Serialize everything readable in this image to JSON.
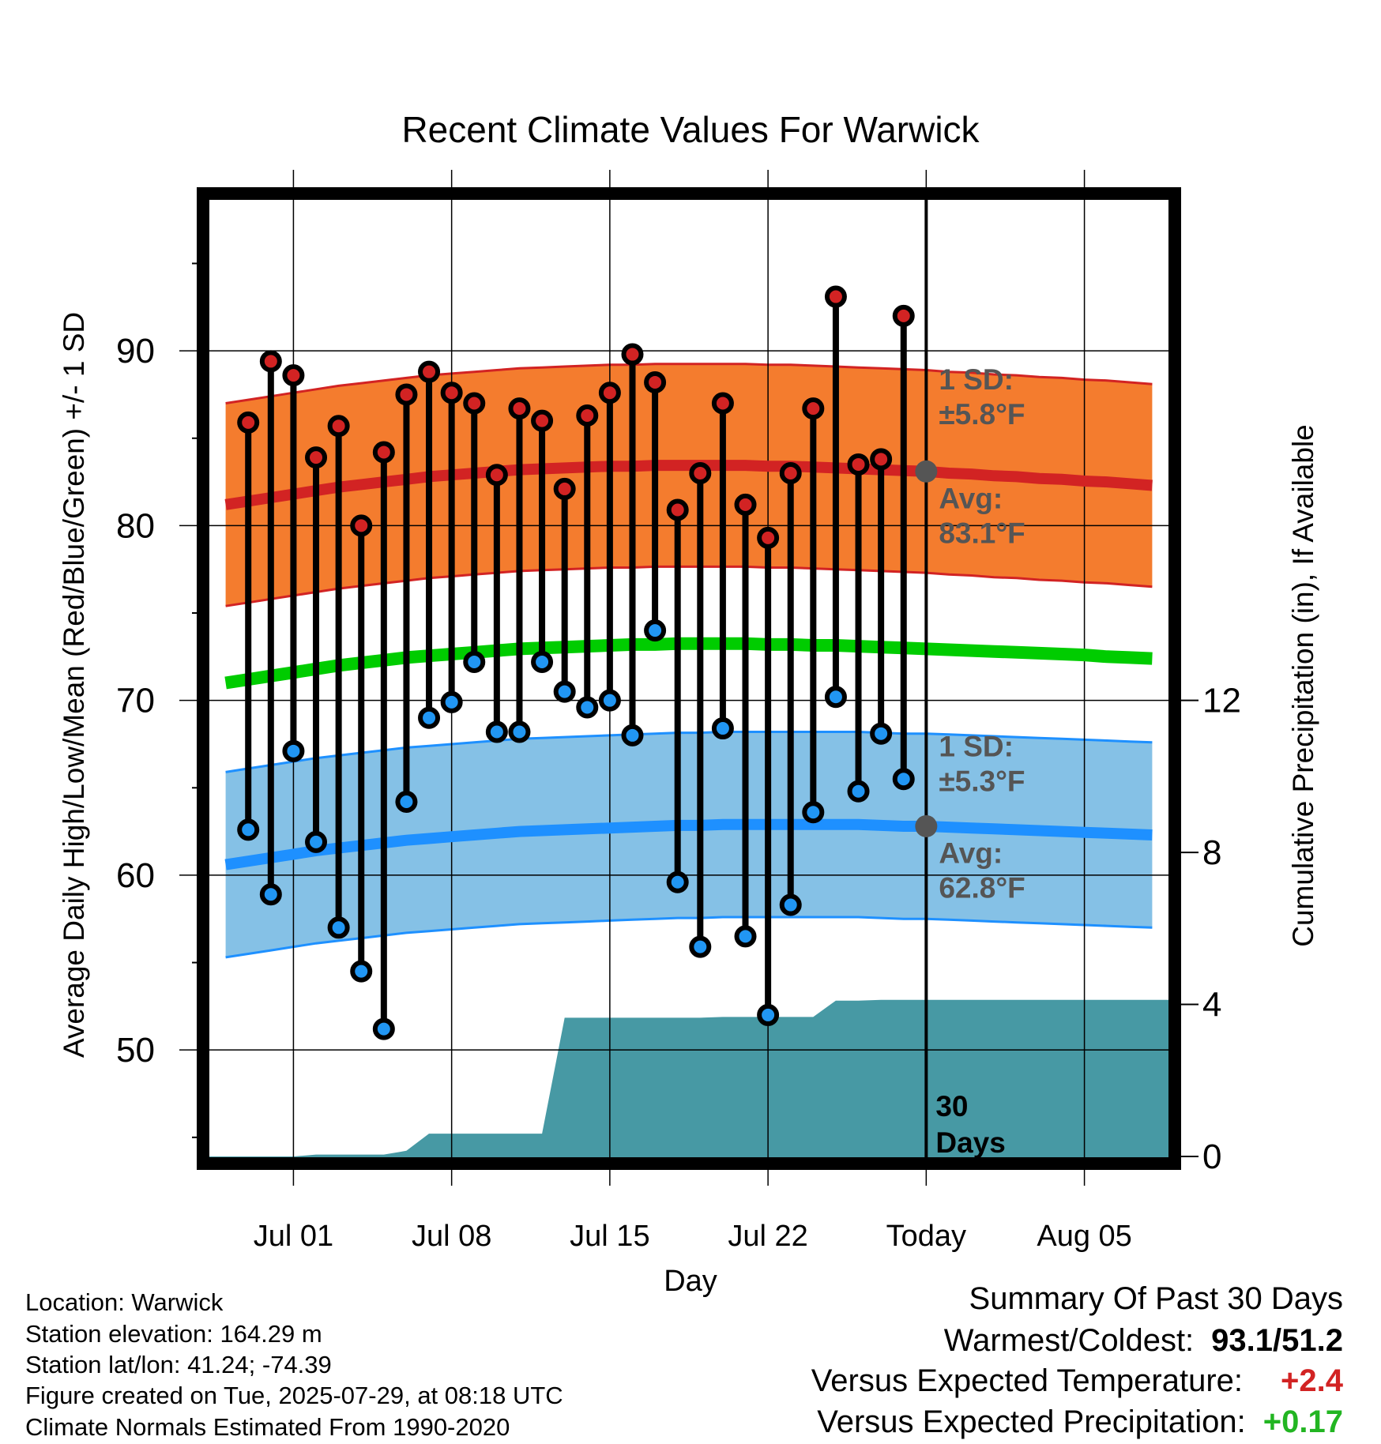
{
  "chart_data": {
    "type": "line",
    "title": "Recent Climate Values For Warwick",
    "xlabel": "Day",
    "ylabel": "Average Daily High/Low/Mean (Red/Blue/Green) +/- 1 SD",
    "y2label": "Cumulative Precipitation (in), If Available",
    "ylim": [
      43.5,
      99
    ],
    "y2lim": [
      -0.27,
      12
    ],
    "y_ticks": [
      "50",
      "60",
      "70",
      "80",
      "90"
    ],
    "y2_ticks": [
      "0",
      "4",
      "8",
      "12"
    ],
    "x_ticks": [
      "Jul 01",
      "Jul 08",
      "Jul 15",
      "Jul 22",
      "Today",
      "Aug 05"
    ],
    "x_dates": [
      "2025-06-28",
      "2025-06-29",
      "2025-06-30",
      "2025-07-01",
      "2025-07-02",
      "2025-07-03",
      "2025-07-04",
      "2025-07-05",
      "2025-07-06",
      "2025-07-07",
      "2025-07-08",
      "2025-07-09",
      "2025-07-10",
      "2025-07-11",
      "2025-07-12",
      "2025-07-13",
      "2025-07-14",
      "2025-07-15",
      "2025-07-16",
      "2025-07-17",
      "2025-07-18",
      "2025-07-19",
      "2025-07-20",
      "2025-07-21",
      "2025-07-22",
      "2025-07-23",
      "2025-07-24",
      "2025-07-25",
      "2025-07-26",
      "2025-07-27",
      "2025-07-28",
      "2025-07-29",
      "2025-07-30",
      "2025-07-31",
      "2025-08-01",
      "2025-08-02",
      "2025-08-03",
      "2025-08-04",
      "2025-08-05",
      "2025-08-06",
      "2025-08-07",
      "2025-08-08"
    ],
    "x_range": [
      "2025-06-27",
      "2025-08-09"
    ],
    "today": "2025-07-29",
    "daily_dates": [
      "2025-06-29",
      "2025-06-30",
      "2025-07-01",
      "2025-07-02",
      "2025-07-03",
      "2025-07-04",
      "2025-07-05",
      "2025-07-06",
      "2025-07-07",
      "2025-07-08",
      "2025-07-09",
      "2025-07-10",
      "2025-07-11",
      "2025-07-12",
      "2025-07-13",
      "2025-07-14",
      "2025-07-15",
      "2025-07-16",
      "2025-07-17",
      "2025-07-18",
      "2025-07-19",
      "2025-07-20",
      "2025-07-21",
      "2025-07-22",
      "2025-07-23",
      "2025-07-24",
      "2025-07-25",
      "2025-07-26",
      "2025-07-27",
      "2025-07-28"
    ],
    "daily_high": [
      85.9,
      89.4,
      88.6,
      83.9,
      85.7,
      80.0,
      84.2,
      87.5,
      88.8,
      87.6,
      87.0,
      82.9,
      86.7,
      86.0,
      82.1,
      86.3,
      87.6,
      89.8,
      88.2,
      80.9,
      83.0,
      87.0,
      81.2,
      79.3,
      83.0,
      86.7,
      93.1,
      83.5,
      83.8,
      92.0
    ],
    "daily_low": [
      62.6,
      58.9,
      67.1,
      61.9,
      57.0,
      54.5,
      51.2,
      64.2,
      69.0,
      69.9,
      72.2,
      68.2,
      68.2,
      72.2,
      70.5,
      69.6,
      70.0,
      68.0,
      74.0,
      59.6,
      55.9,
      68.4,
      56.5,
      52.0,
      58.3,
      63.6,
      70.2,
      64.8,
      68.1,
      65.5
    ],
    "normal_high": [
      81.2,
      81.4,
      81.6,
      81.8,
      82.0,
      82.2,
      82.35,
      82.5,
      82.65,
      82.8,
      82.9,
      83.0,
      83.1,
      83.2,
      83.25,
      83.3,
      83.35,
      83.4,
      83.4,
      83.45,
      83.45,
      83.45,
      83.45,
      83.45,
      83.4,
      83.4,
      83.35,
      83.3,
      83.25,
      83.2,
      83.15,
      83.1,
      83.0,
      82.95,
      82.85,
      82.8,
      82.7,
      82.65,
      82.55,
      82.5,
      82.4,
      82.3
    ],
    "normal_high_sd": 5.8,
    "normal_low": [
      60.6,
      60.8,
      61.0,
      61.2,
      61.4,
      61.55,
      61.7,
      61.85,
      62.0,
      62.1,
      62.2,
      62.3,
      62.4,
      62.5,
      62.55,
      62.6,
      62.65,
      62.7,
      62.75,
      62.8,
      62.85,
      62.85,
      62.9,
      62.9,
      62.9,
      62.9,
      62.9,
      62.9,
      62.9,
      62.85,
      62.8,
      62.8,
      62.75,
      62.7,
      62.65,
      62.6,
      62.55,
      62.5,
      62.45,
      62.4,
      62.35,
      62.3
    ],
    "normal_low_sd": 5.3,
    "normal_mean": [
      71.0,
      71.2,
      71.4,
      71.6,
      71.8,
      72.0,
      72.15,
      72.3,
      72.45,
      72.55,
      72.65,
      72.75,
      72.85,
      72.95,
      73.0,
      73.05,
      73.1,
      73.15,
      73.2,
      73.2,
      73.25,
      73.25,
      73.25,
      73.25,
      73.2,
      73.2,
      73.15,
      73.15,
      73.1,
      73.05,
      73.0,
      72.95,
      72.9,
      72.85,
      72.8,
      72.75,
      72.7,
      72.65,
      72.6,
      72.5,
      72.45,
      72.4
    ],
    "precip_dates": [
      "2025-06-27",
      "2025-06-28",
      "2025-06-29",
      "2025-06-30",
      "2025-07-01",
      "2025-07-02",
      "2025-07-03",
      "2025-07-04",
      "2025-07-05",
      "2025-07-06",
      "2025-07-07",
      "2025-07-08",
      "2025-07-09",
      "2025-07-10",
      "2025-07-11",
      "2025-07-12",
      "2025-07-13",
      "2025-07-14",
      "2025-07-15",
      "2025-07-16",
      "2025-07-17",
      "2025-07-18",
      "2025-07-19",
      "2025-07-20",
      "2025-07-21",
      "2025-07-22",
      "2025-07-23",
      "2025-07-24",
      "2025-07-25",
      "2025-07-26",
      "2025-07-27",
      "2025-07-28",
      "2025-07-29",
      "2025-08-09"
    ],
    "cumulative_precip": [
      0,
      0,
      0,
      0,
      0,
      0.05,
      0.05,
      0.05,
      0.05,
      0.15,
      0.6,
      0.6,
      0.6,
      0.6,
      0.6,
      0.6,
      3.65,
      3.65,
      3.65,
      3.65,
      3.65,
      3.65,
      3.65,
      3.67,
      3.67,
      3.67,
      3.67,
      3.67,
      4.1,
      4.1,
      4.12,
      4.12,
      4.12,
      4.12
    ],
    "annotations": {
      "high_sd_label": "1 SD:",
      "high_sd_value": "±5.8°F",
      "high_avg_label": "Avg:",
      "high_avg_value": "83.1°F",
      "low_sd_label": "1 SD:",
      "low_sd_value": "±5.3°F",
      "low_avg_label": "Avg:",
      "low_avg_value": "62.8°F",
      "window_days_1": "30",
      "window_days_2": "Days"
    },
    "colors": {
      "high_band": "#F47C2E",
      "high_line": "#D22323",
      "low_band": "#85C1E6",
      "low_line": "#1E90FF",
      "mean_line": "#00CC00",
      "precip_fill": "#4799A4",
      "high_marker": "#D22323",
      "low_marker": "#2196F3",
      "annotation": "#555555"
    },
    "grid": true
  },
  "info": {
    "location": "Location: Warwick",
    "elevation": "Station elevation: 164.29 m",
    "latlon": "Station lat/lon: 41.24; -74.39",
    "created": "Figure created on Tue, 2025-07-29, at 08:18 UTC",
    "normals": "Climate Normals Estimated From 1990-2020"
  },
  "summary": {
    "heading": "Summary Of Past 30 Days",
    "warm_cold_label": "Warmest/Coldest:",
    "warm_cold_value": "93.1/51.2",
    "temp_label": "Versus Expected Temperature:",
    "temp_value": "+2.4",
    "temp_color": "#D22323",
    "precip_label": "Versus Expected Precipitation:",
    "precip_value": "+0.17",
    "precip_color": "#22B522"
  }
}
